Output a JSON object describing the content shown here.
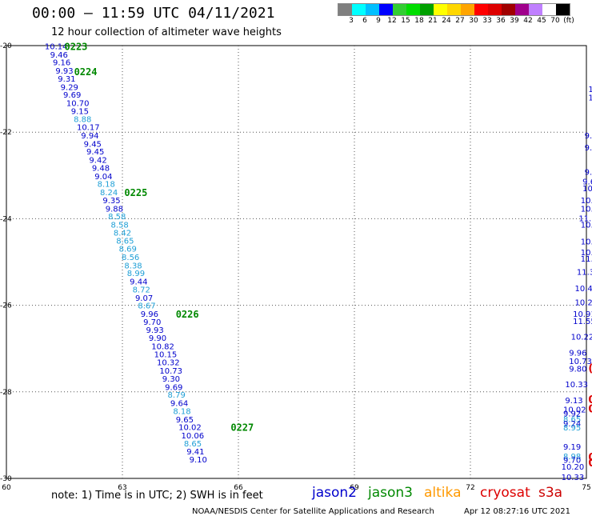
{
  "header": {
    "title": "00:00 — 11:59 UTC 04/11/2021",
    "subtitle": "12 hour collection of altimeter wave heights"
  },
  "legend": {
    "colors": [
      "#7f7f7f",
      "#00ffff",
      "#00bfff",
      "#0000ff",
      "#32cd32",
      "#00dd00",
      "#00a000",
      "#ffff00",
      "#ffd700",
      "#ffa500",
      "#ff0000",
      "#dd0000",
      "#a00000",
      "#a0008c",
      "#c080ff",
      "#ffffff",
      "#000000"
    ],
    "labels": [
      "3",
      "6",
      "9",
      "12",
      "15",
      "18",
      "21",
      "24",
      "27",
      "30",
      "33",
      "36",
      "39",
      "42",
      "45",
      "70",
      "(ft)"
    ]
  },
  "footer": {
    "note": "note:  1) Time is in UTC;  2) SWH is in feet",
    "credit": "NOAA/NESDIS Center for Satellite Applications and Research",
    "date": "Apr 12 08:27:16 UTC 2021"
  },
  "satellites": [
    {
      "name": "jason2",
      "color": "#0000cc"
    },
    {
      "name": "jason3",
      "color": "#008800"
    },
    {
      "name": "altika",
      "color": "#ff9900"
    },
    {
      "name": "cryosat",
      "color": "#dd0000"
    },
    {
      "name": "s3a",
      "color": "#cc0000"
    }
  ],
  "chart_data": {
    "type": "scatter",
    "xlim": [
      60,
      75
    ],
    "ylim": [
      -30,
      -20
    ],
    "xticks": [
      60,
      63,
      66,
      69,
      72,
      75
    ],
    "yticks": [
      -20,
      -22,
      -24,
      -26,
      -28,
      -30
    ],
    "grid": true,
    "grid_style": "dotted",
    "series": [
      {
        "name": "jason3",
        "color_dark": "#0000cc",
        "color_light": "#1e9fd6",
        "points": [
          {
            "x": 60.99,
            "y": -20.01,
            "v": "10.14",
            "c": "d"
          },
          {
            "x": 61.13,
            "y": -20.2,
            "v": "9.46",
            "c": "d"
          },
          {
            "x": 61.2,
            "y": -20.38,
            "v": "9.16",
            "c": "d"
          },
          {
            "x": 61.27,
            "y": -20.57,
            "v": "9.93",
            "c": "d"
          },
          {
            "x": 61.33,
            "y": -20.76,
            "v": "9.31",
            "c": "d"
          },
          {
            "x": 61.4,
            "y": -20.95,
            "v": "9.29",
            "c": "d"
          },
          {
            "x": 61.47,
            "y": -21.13,
            "v": "9.69",
            "c": "d"
          },
          {
            "x": 61.55,
            "y": -21.32,
            "v": "10.70",
            "c": "d"
          },
          {
            "x": 61.67,
            "y": -21.51,
            "v": "9.15",
            "c": "d"
          },
          {
            "x": 61.74,
            "y": -21.69,
            "v": "8.88",
            "c": "l"
          },
          {
            "x": 61.82,
            "y": -21.88,
            "v": "10.17",
            "c": "d"
          },
          {
            "x": 61.93,
            "y": -22.07,
            "v": "9.94",
            "c": "d"
          },
          {
            "x": 62.0,
            "y": -22.26,
            "v": "9.45",
            "c": "d"
          },
          {
            "x": 62.07,
            "y": -22.44,
            "v": "9.45",
            "c": "d"
          },
          {
            "x": 62.14,
            "y": -22.63,
            "v": "9.42",
            "c": "d"
          },
          {
            "x": 62.21,
            "y": -22.82,
            "v": "9.48",
            "c": "d"
          },
          {
            "x": 62.28,
            "y": -23.01,
            "v": "9.04",
            "c": "d"
          },
          {
            "x": 62.35,
            "y": -23.19,
            "v": "8.18",
            "c": "l"
          },
          {
            "x": 62.42,
            "y": -23.38,
            "v": "8.24",
            "c": "l"
          },
          {
            "x": 62.49,
            "y": -23.57,
            "v": "9.35",
            "c": "d"
          },
          {
            "x": 62.56,
            "y": -23.76,
            "v": "9.88",
            "c": "d"
          },
          {
            "x": 62.63,
            "y": -23.94,
            "v": "8.58",
            "c": "l"
          },
          {
            "x": 62.7,
            "y": -24.13,
            "v": "8.58",
            "c": "l"
          },
          {
            "x": 62.77,
            "y": -24.32,
            "v": "8.42",
            "c": "l"
          },
          {
            "x": 62.84,
            "y": -24.5,
            "v": "8.65",
            "c": "l"
          },
          {
            "x": 62.91,
            "y": -24.69,
            "v": "8.69",
            "c": "l"
          },
          {
            "x": 62.98,
            "y": -24.88,
            "v": "8.56",
            "c": "l"
          },
          {
            "x": 63.05,
            "y": -25.07,
            "v": "8.38",
            "c": "l"
          },
          {
            "x": 63.12,
            "y": -25.25,
            "v": "8.99",
            "c": "l"
          },
          {
            "x": 63.19,
            "y": -25.44,
            "v": "9.44",
            "c": "d"
          },
          {
            "x": 63.26,
            "y": -25.63,
            "v": "8.72",
            "c": "l"
          },
          {
            "x": 63.33,
            "y": -25.82,
            "v": "9.07",
            "c": "d"
          },
          {
            "x": 63.4,
            "y": -26.0,
            "v": "8.67",
            "c": "l"
          },
          {
            "x": 63.47,
            "y": -26.19,
            "v": "9.96",
            "c": "d"
          },
          {
            "x": 63.54,
            "y": -26.38,
            "v": "9.70",
            "c": "d"
          },
          {
            "x": 63.61,
            "y": -26.56,
            "v": "9.93",
            "c": "d"
          },
          {
            "x": 63.68,
            "y": -26.75,
            "v": "9.90",
            "c": "d"
          },
          {
            "x": 63.75,
            "y": -26.94,
            "v": "10.82",
            "c": "d"
          },
          {
            "x": 63.82,
            "y": -27.13,
            "v": "10.15",
            "c": "d"
          },
          {
            "x": 63.89,
            "y": -27.31,
            "v": "10.32",
            "c": "d"
          },
          {
            "x": 63.96,
            "y": -27.5,
            "v": "10.73",
            "c": "d"
          },
          {
            "x": 64.03,
            "y": -27.69,
            "v": "9.30",
            "c": "d"
          },
          {
            "x": 64.1,
            "y": -27.88,
            "v": "9.69",
            "c": "d"
          },
          {
            "x": 64.17,
            "y": -28.06,
            "v": "8.79",
            "c": "l"
          },
          {
            "x": 64.24,
            "y": -28.25,
            "v": "9.64",
            "c": "d"
          },
          {
            "x": 64.31,
            "y": -28.44,
            "v": "8.18",
            "c": "l"
          },
          {
            "x": 64.38,
            "y": -28.63,
            "v": "9.65",
            "c": "d"
          },
          {
            "x": 64.45,
            "y": -28.81,
            "v": "10.02",
            "c": "d"
          },
          {
            "x": 64.52,
            "y": -29.0,
            "v": "10.06",
            "c": "d"
          },
          {
            "x": 64.59,
            "y": -29.19,
            "v": "8.65",
            "c": "l"
          },
          {
            "x": 64.66,
            "y": -29.37,
            "v": "9.41",
            "c": "d"
          },
          {
            "x": 64.73,
            "y": -29.56,
            "v": "9.10",
            "c": "d"
          }
        ],
        "time_labels": [
          {
            "x": 61.5,
            "y": -20.01,
            "t": "0223"
          },
          {
            "x": 61.75,
            "y": -20.59,
            "t": "0224"
          },
          {
            "x": 63.05,
            "y": -23.38,
            "t": "0225"
          },
          {
            "x": 64.38,
            "y": -26.19,
            "t": "0226"
          },
          {
            "x": 65.8,
            "y": -28.81,
            "t": "0227"
          }
        ]
      },
      {
        "name": "jason2",
        "color_dark": "#0000cc",
        "color_light": "#1e9fd6",
        "points": [
          {
            "x": 75.05,
            "y": -21.0,
            "v": "1ı",
            "c": "d"
          },
          {
            "x": 75.05,
            "y": -21.19,
            "v": "1ı",
            "c": "d"
          },
          {
            "x": 74.95,
            "y": -22.07,
            "v": "9.",
            "c": "d"
          },
          {
            "x": 74.95,
            "y": -22.35,
            "v": "9.",
            "c": "d"
          },
          {
            "x": 74.95,
            "y": -22.91,
            "v": "9.1",
            "c": "d"
          },
          {
            "x": 74.9,
            "y": -23.13,
            "v": "9.6",
            "c": "d"
          },
          {
            "x": 74.9,
            "y": -23.29,
            "v": "10.8",
            "c": "d"
          },
          {
            "x": 74.85,
            "y": -23.57,
            "v": "10.5",
            "c": "d"
          },
          {
            "x": 74.85,
            "y": -23.76,
            "v": "10.7",
            "c": "d"
          },
          {
            "x": 74.8,
            "y": -23.98,
            "v": "11.7",
            "c": "d"
          },
          {
            "x": 74.85,
            "y": -24.13,
            "v": "10.4",
            "c": "d"
          },
          {
            "x": 74.85,
            "y": -24.52,
            "v": "10.78",
            "c": "d"
          },
          {
            "x": 74.85,
            "y": -24.77,
            "v": "10.43",
            "c": "d"
          },
          {
            "x": 74.85,
            "y": -24.92,
            "v": "11.12",
            "c": "d"
          },
          {
            "x": 74.75,
            "y": -25.22,
            "v": "11.31",
            "c": "d"
          },
          {
            "x": 74.7,
            "y": -25.6,
            "v": "10.48",
            "c": "d"
          },
          {
            "x": 74.7,
            "y": -25.92,
            "v": "10.29",
            "c": "d"
          },
          {
            "x": 74.65,
            "y": -26.19,
            "v": "10.91",
            "c": "d"
          },
          {
            "x": 74.65,
            "y": -26.36,
            "v": "11.55",
            "c": "d"
          },
          {
            "x": 74.6,
            "y": -26.72,
            "v": "10.22",
            "c": "d"
          },
          {
            "x": 74.55,
            "y": -27.09,
            "v": "9.96",
            "c": "d"
          },
          {
            "x": 74.55,
            "y": -27.28,
            "v": "10.73",
            "c": "d"
          },
          {
            "x": 74.55,
            "y": -27.46,
            "v": "9.80",
            "c": "d"
          },
          {
            "x": 74.45,
            "y": -27.82,
            "v": "10.33",
            "c": "d"
          },
          {
            "x": 74.45,
            "y": -28.19,
            "v": "9.13",
            "c": "d"
          },
          {
            "x": 74.4,
            "y": -28.4,
            "v": "10.02",
            "c": "d"
          },
          {
            "x": 74.4,
            "y": -28.49,
            "v": "9.92",
            "c": "d"
          },
          {
            "x": 74.4,
            "y": -28.62,
            "v": "8.65",
            "c": "l"
          },
          {
            "x": 74.4,
            "y": -28.72,
            "v": "9.24",
            "c": "d"
          },
          {
            "x": 74.4,
            "y": -28.82,
            "v": "8.95",
            "c": "l"
          },
          {
            "x": 74.4,
            "y": -29.26,
            "v": "9.19",
            "c": "d"
          },
          {
            "x": 74.4,
            "y": -29.48,
            "v": "8.98",
            "c": "l"
          },
          {
            "x": 74.4,
            "y": -29.57,
            "v": "9.70",
            "c": "d"
          },
          {
            "x": 74.35,
            "y": -29.72,
            "v": "10.20",
            "c": "d"
          },
          {
            "x": 74.35,
            "y": -29.96,
            "v": "10.33",
            "c": "d"
          }
        ],
        "time_labels": []
      },
      {
        "name": "cryosat",
        "color_dark": "#dd0000",
        "color_light": "#dd0000",
        "points": [
          {
            "x": 75.05,
            "y": -27.46,
            "v": "(",
            "c": "d"
          },
          {
            "x": 75.05,
            "y": -28.19,
            "v": "0",
            "c": "d"
          },
          {
            "x": 75.05,
            "y": -28.4,
            "v": "0",
            "c": "d"
          },
          {
            "x": 75.05,
            "y": -29.52,
            "v": "05",
            "c": "d"
          },
          {
            "x": 75.05,
            "y": -29.65,
            "v": "05",
            "c": "d"
          }
        ],
        "time_labels": []
      }
    ]
  }
}
